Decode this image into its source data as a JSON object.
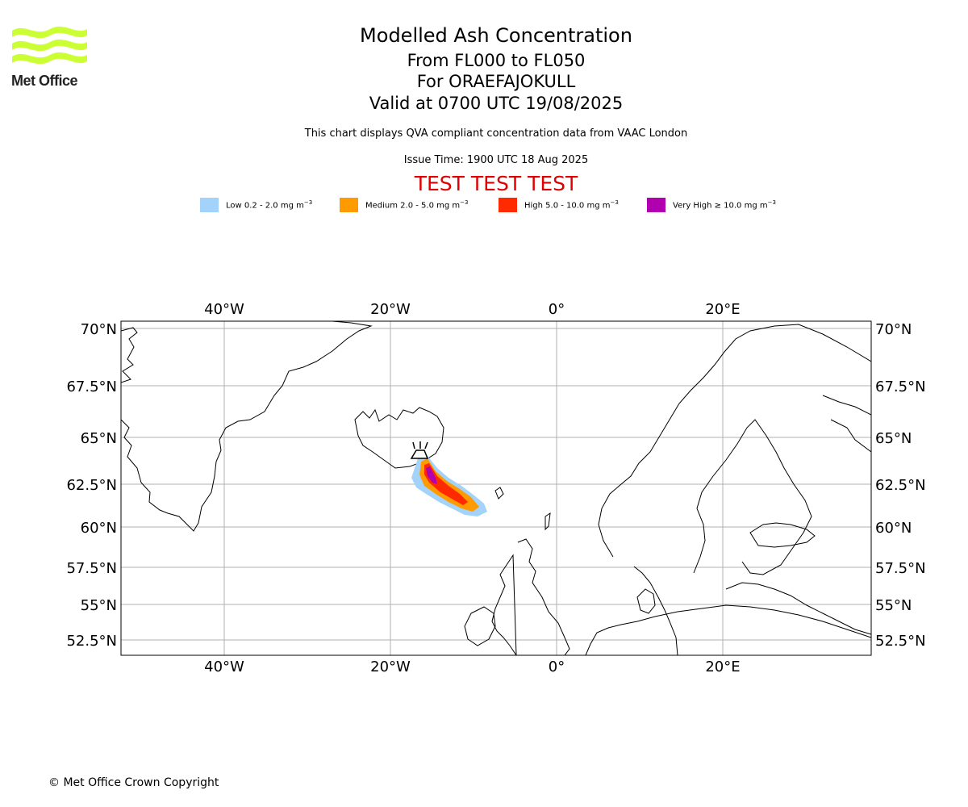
{
  "branding": {
    "logo_text": "Met Office",
    "logo_color": "#ccff33"
  },
  "header": {
    "title": "Modelled Ash Concentration",
    "levels": "From FL000 to FL050",
    "volcano": "For ORAEFAJOKULL",
    "valid": "Valid at 0700 UTC 19/08/2025",
    "note": "This chart displays QVA compliant concentration data from VAAC London",
    "issue_time": "Issue Time: 1900 UTC 18 Aug 2025",
    "banner": "TEST TEST TEST"
  },
  "legend": [
    {
      "label": "Low 0.2 - 2.0 mg m",
      "exp": "−3",
      "color": "#a3d3fa"
    },
    {
      "label": "Medium 2.0 - 5.0 mg m",
      "exp": "−3",
      "color": "#ff9a00"
    },
    {
      "label": "High 5.0 - 10.0 mg m",
      "exp": "−3",
      "color": "#ff2a00"
    },
    {
      "label": "Very High ≥ 10.0 mg m",
      "exp": "−3",
      "color": "#b000b0"
    }
  ],
  "map": {
    "lon_labels": [
      "40°W",
      "20°W",
      "0°",
      "20°E"
    ],
    "lat_labels": [
      "70°N",
      "67.5°N",
      "65°N",
      "62.5°N",
      "60°N",
      "57.5°N",
      "55°N",
      "52.5°N"
    ],
    "volcano_marker": "volcano-icon"
  },
  "footer": {
    "copyright": "© Met Office Crown Copyright"
  }
}
